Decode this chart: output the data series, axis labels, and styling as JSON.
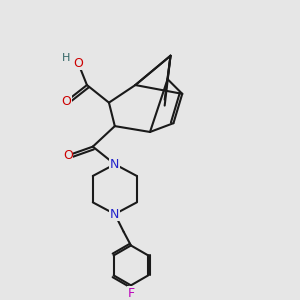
{
  "bg_color": "#e6e6e6",
  "bond_color": "#1a1a1a",
  "bond_width": 1.5,
  "atom_colors": {
    "O": "#cc0000",
    "N": "#2222cc",
    "F": "#bb00bb",
    "H": "#336666",
    "C": "#1a1a1a"
  }
}
